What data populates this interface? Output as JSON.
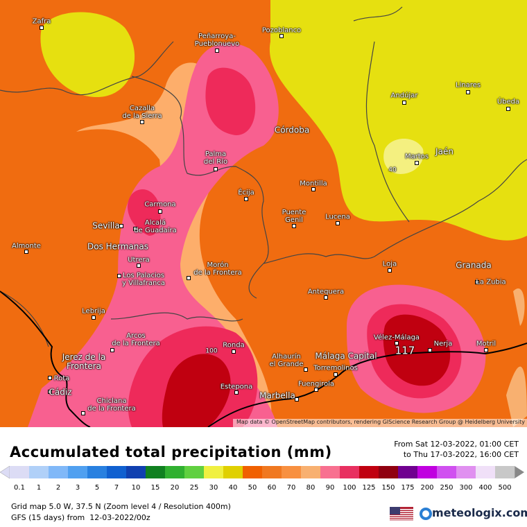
{
  "map": {
    "cities": [
      "Zafra",
      "Peñarroya-\nPueblonuevo",
      "Pozoblanco",
      "Cazalla\nde la Sierra",
      "Andújar",
      "Linares",
      "Úbeda",
      "Córdoba",
      "Palma\ndel Río",
      "Martos",
      "Jaén",
      "Écija",
      "Montilla",
      "Carmona",
      "Sevilla",
      "Alcalá\nde Guadaíra",
      "Puente\nGenil",
      "Lucena",
      "Almonte",
      "Dos Hermanas",
      "Utrera",
      "Los Palacios\ny Villafranca",
      "Morón\nde la Frontera",
      "Loja",
      "Granada",
      "La Zubia",
      "Antequera",
      "Lebrija",
      "Arcos\nde la Frontera",
      "Ronda",
      "Vélez-Málaga",
      "Nerja",
      "Motril",
      "Jerez de la\nFrontera",
      "Alhaurín\nel Grande",
      "Málaga Capital",
      "Torremolinos",
      "Rota",
      "Fuengirola",
      "Cádiz",
      "Marbella",
      "Estepona",
      "Chiclana\nde la Frontera"
    ],
    "contour_labels": [
      40,
      100,
      117
    ],
    "attribution": "Map data © OpenStreetMap contributors, rendering GIScience Research Group @ Heidelberg University"
  },
  "header": {
    "title": "Accumulated total precipitation (mm)",
    "period": [
      "From Sat 12-03-2022, 01:00 CET",
      "to Thu 17-03-2022, 16:00 CET"
    ]
  },
  "legend": {
    "values": [
      0.1,
      1,
      2,
      3,
      5,
      7,
      10,
      15,
      20,
      25,
      30,
      40,
      50,
      60,
      70,
      80,
      90,
      100,
      125,
      150,
      175,
      200,
      250,
      300,
      400,
      500
    ],
    "colors": [
      "#dcdcf5",
      "#b0d0f8",
      "#80b8f8",
      "#50a0f0",
      "#2880e0",
      "#1060d0",
      "#1040b0",
      "#108020",
      "#30b030",
      "#60d040",
      "#f0f040",
      "#e0d000",
      "#f06000",
      "#f07820",
      "#f89040",
      "#f8b070",
      "#f87090",
      "#e83060",
      "#c00010",
      "#900010",
      "#700090",
      "#c000e0",
      "#d050f0",
      "#e090f0",
      "#f0e0f8",
      "#c8c8c8"
    ]
  },
  "footer": {
    "grid": "Grid map 5.0 W, 37.5 N (Zoom level 4 / Resolution 400m)",
    "model": "GFS (15 days) from  12-03-2022/00z",
    "brand": "meteologix.com"
  }
}
